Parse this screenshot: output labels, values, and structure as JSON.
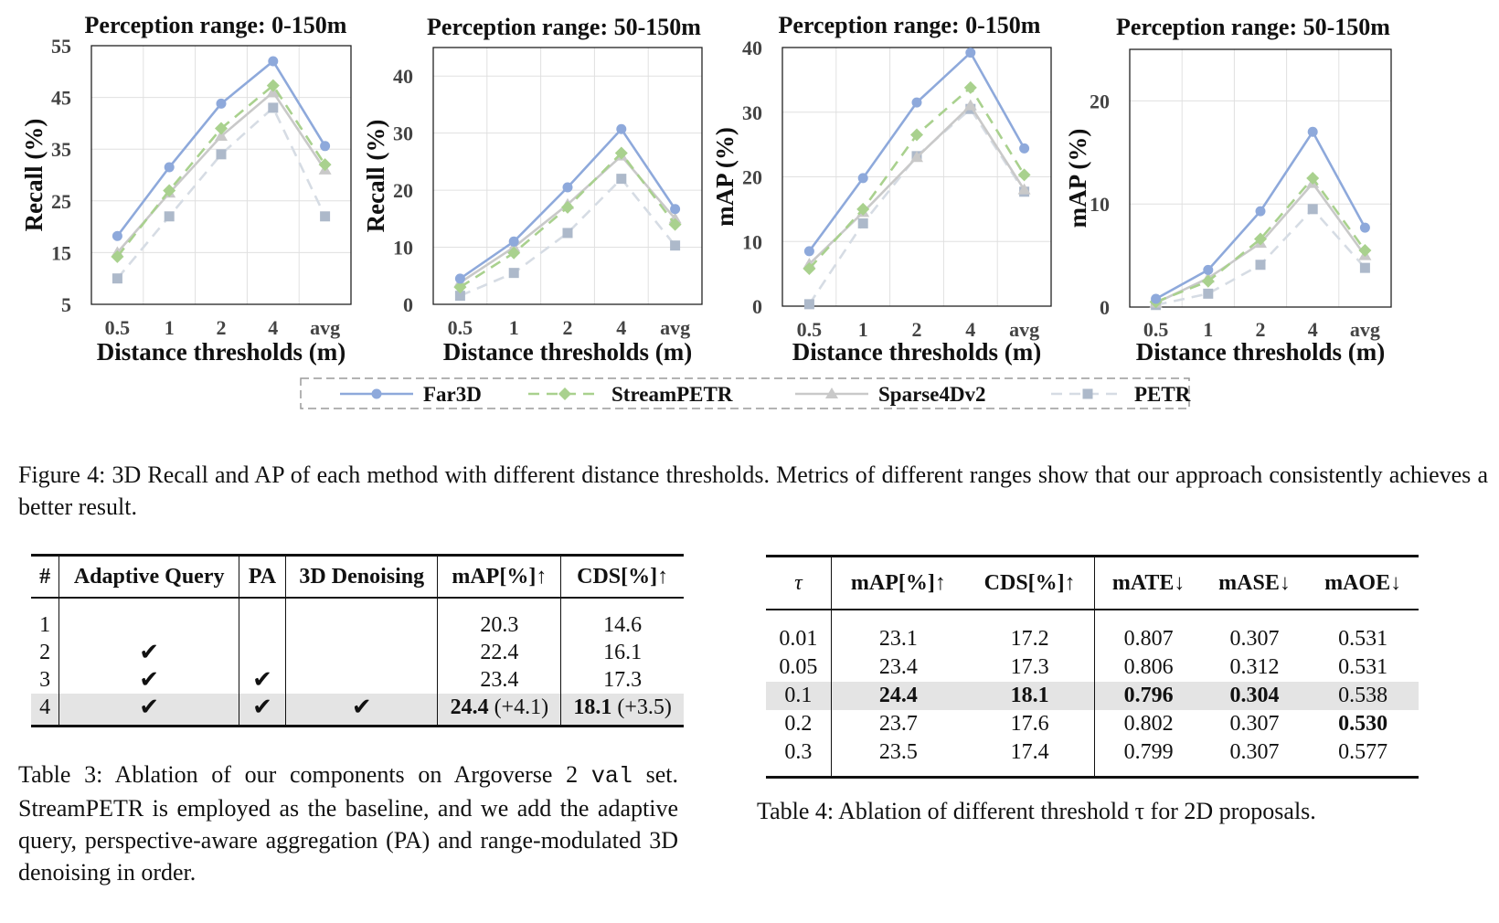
{
  "chart_data": [
    {
      "type": "line",
      "title": "Perception range: 0-150m",
      "xlabel": "Distance thresholds (m)",
      "ylabel": "Recall (%)",
      "categories": [
        "0.5",
        "1",
        "2",
        "4",
        "avg"
      ],
      "ylim": [
        5,
        55
      ],
      "yticks": [
        5,
        15,
        25,
        35,
        45,
        55
      ],
      "grid": true,
      "series": [
        {
          "name": "Far3D",
          "values": [
            18.2,
            31.5,
            43.8,
            52.0,
            35.6
          ]
        },
        {
          "name": "StreamPETR",
          "values": [
            14.2,
            27.0,
            39.0,
            47.3,
            32.0
          ]
        },
        {
          "name": "Sparse4Dv2",
          "values": [
            15.0,
            26.5,
            37.5,
            46.0,
            31.0
          ]
        },
        {
          "name": "PETR",
          "values": [
            10.0,
            22.0,
            34.0,
            43.0,
            22.0
          ]
        }
      ]
    },
    {
      "type": "line",
      "title": "Perception range: 50-150m",
      "xlabel": "Distance thresholds (m)",
      "ylabel": "Recall (%)",
      "categories": [
        "0.5",
        "1",
        "2",
        "4",
        "avg"
      ],
      "ylim": [
        0,
        45
      ],
      "yticks": [
        0,
        10,
        20,
        30,
        40
      ],
      "grid": true,
      "series": [
        {
          "name": "Far3D",
          "values": [
            4.5,
            11.0,
            20.5,
            30.7,
            16.7
          ]
        },
        {
          "name": "StreamPETR",
          "values": [
            3.0,
            9.0,
            17.0,
            26.5,
            14.0
          ]
        },
        {
          "name": "Sparse4Dv2",
          "values": [
            3.8,
            10.0,
            17.5,
            26.0,
            15.0
          ]
        },
        {
          "name": "PETR",
          "values": [
            1.5,
            5.5,
            12.5,
            22.0,
            10.3
          ]
        }
      ]
    },
    {
      "type": "line",
      "title": "Perception range: 0-150m",
      "xlabel": "Distance thresholds (m)",
      "ylabel": "mAP (%)",
      "categories": [
        "0.5",
        "1",
        "2",
        "4",
        "avg"
      ],
      "ylim": [
        0,
        40
      ],
      "yticks": [
        0,
        10,
        20,
        30,
        40
      ],
      "grid": true,
      "series": [
        {
          "name": "Far3D",
          "values": [
            8.5,
            19.8,
            31.5,
            39.2,
            24.4
          ]
        },
        {
          "name": "StreamPETR",
          "values": [
            5.8,
            15.0,
            26.5,
            33.8,
            20.3
          ]
        },
        {
          "name": "Sparse4Dv2",
          "values": [
            6.5,
            14.5,
            23.0,
            31.0,
            18.0
          ]
        },
        {
          "name": "PETR",
          "values": [
            0.3,
            12.8,
            23.2,
            30.5,
            17.7
          ]
        }
      ]
    },
    {
      "type": "line",
      "title": "Perception range: 50-150m",
      "xlabel": "Distance thresholds (m)",
      "ylabel": "mAP (%)",
      "categories": [
        "0.5",
        "1",
        "2",
        "4",
        "avg"
      ],
      "ylim": [
        0,
        25
      ],
      "yticks": [
        0,
        10,
        20
      ],
      "grid": true,
      "series": [
        {
          "name": "Far3D",
          "values": [
            0.8,
            3.6,
            9.3,
            17.0,
            7.7
          ]
        },
        {
          "name": "StreamPETR",
          "values": [
            0.5,
            2.5,
            6.6,
            12.5,
            5.5
          ]
        },
        {
          "name": "Sparse4Dv2",
          "values": [
            0.4,
            2.8,
            6.2,
            12.0,
            5.0
          ]
        },
        {
          "name": "PETR",
          "values": [
            0.2,
            1.3,
            4.1,
            9.5,
            3.8
          ]
        }
      ]
    }
  ],
  "legend": [
    {
      "name": "Far3D",
      "color": "#8ea9db",
      "marker": "circle",
      "dash": "solid"
    },
    {
      "name": "StreamPETR",
      "color": "#a9d18e",
      "marker": "diamond",
      "dash": "dashed"
    },
    {
      "name": "Sparse4Dv2",
      "color": "#c9c9c9",
      "marker": "triangle",
      "dash": "solid"
    },
    {
      "name": "PETR",
      "color": "#d6dce4",
      "marker": "square",
      "dash": "dashed"
    }
  ],
  "marker_colors": {
    "PETR": "#adb9ca"
  },
  "figure_caption": "Figure 4: 3D Recall and AP of each method with different distance thresholds. Metrics of different ranges show that our approach consistently achieves a better result.",
  "table3": {
    "headers": [
      "#",
      "Adaptive Query",
      "PA",
      "3D Denoising",
      "mAP[%]↑",
      "CDS[%]↑"
    ],
    "check_symbol": "✔",
    "rows": [
      {
        "id": "1",
        "aq": "",
        "pa": "",
        "dn": "",
        "map": "20.3",
        "map_delta": "",
        "cds": "14.6",
        "cds_delta": ""
      },
      {
        "id": "2",
        "aq": "✔",
        "pa": "",
        "dn": "",
        "map": "22.4",
        "map_delta": "",
        "cds": "16.1",
        "cds_delta": ""
      },
      {
        "id": "3",
        "aq": "✔",
        "pa": "✔",
        "dn": "",
        "map": "23.4",
        "map_delta": "",
        "cds": "17.3",
        "cds_delta": ""
      },
      {
        "id": "4",
        "aq": "✔",
        "pa": "✔",
        "dn": "✔",
        "map": "24.4",
        "map_delta": " (+4.1)",
        "cds": "18.1",
        "cds_delta": " (+3.5)"
      }
    ],
    "caption_pre": "Table 3: Ablation of our components on Argoverse 2 ",
    "caption_code": "val",
    "caption_post": " set. StreamPETR is employed as the baseline, and we add the adaptive query, perspective-aware aggregation (PA) and range-modulated 3D denoising in order."
  },
  "table4": {
    "headers": [
      "τ",
      "mAP[%]↑",
      "CDS[%]↑",
      "mATE↓",
      "mASE↓",
      "mAOE↓"
    ],
    "rows": [
      [
        "0.01",
        "23.1",
        "17.2",
        "0.807",
        "0.307",
        "0.531"
      ],
      [
        "0.05",
        "23.4",
        "17.3",
        "0.806",
        "0.312",
        "0.531"
      ],
      [
        "0.1",
        "24.4",
        "18.1",
        "0.796",
        "0.304",
        "0.538"
      ],
      [
        "0.2",
        "23.7",
        "17.6",
        "0.802",
        "0.307",
        "0.530"
      ],
      [
        "0.3",
        "23.5",
        "17.4",
        "0.799",
        "0.307",
        "0.577"
      ]
    ],
    "caption": "Table 4: Ablation of different threshold τ for 2D proposals."
  }
}
